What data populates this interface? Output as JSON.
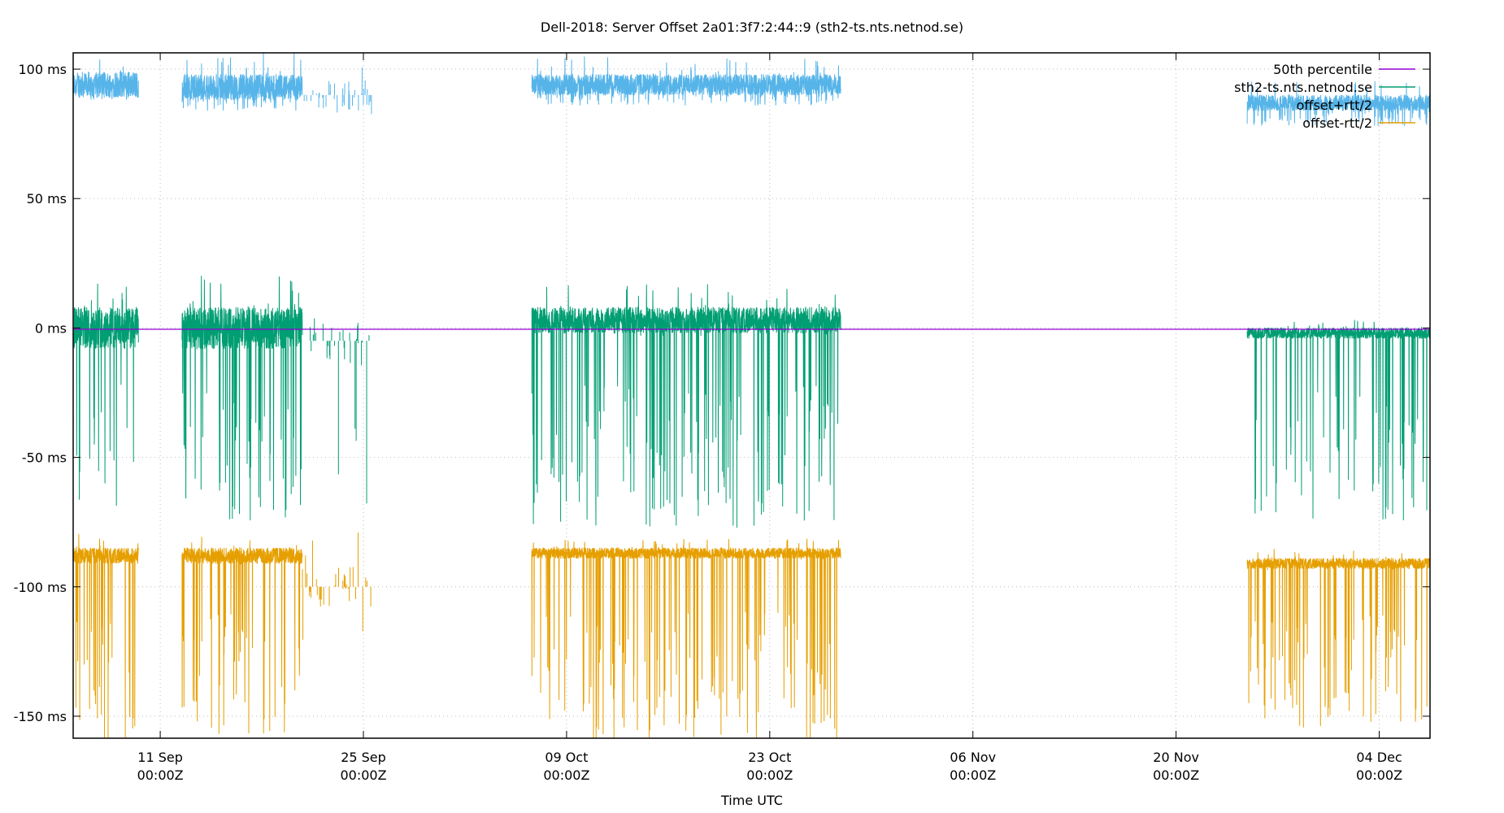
{
  "chart_data": {
    "type": "line",
    "title": "Dell-2018: Server Offset 2a01:3f7:2:44::9 (sth2-ts.nts.netnod.se)",
    "xlabel": "Time UTC",
    "ylabel": "",
    "x_unit": "days since 05 Sep 00:00Z",
    "xlim": [
      0,
      93.5
    ],
    "ylim": [
      -158.5,
      106.3
    ],
    "grid": true,
    "legend_position": "top-right",
    "yticks": [
      {
        "value": 100,
        "label": "100 ms"
      },
      {
        "value": 50,
        "label": "50 ms"
      },
      {
        "value": 0,
        "label": "0 ms"
      },
      {
        "value": -50,
        "label": "-50 ms"
      },
      {
        "value": -100,
        "label": "-100 ms"
      },
      {
        "value": -150,
        "label": "-150 ms"
      }
    ],
    "xticks": [
      {
        "value": 6,
        "label": "11 Sep",
        "sub": "00:00Z"
      },
      {
        "value": 20,
        "label": "25 Sep",
        "sub": "00:00Z"
      },
      {
        "value": 34,
        "label": "09 Oct",
        "sub": "00:00Z"
      },
      {
        "value": 48,
        "label": "23 Oct",
        "sub": "00:00Z"
      },
      {
        "value": 62,
        "label": "06 Nov",
        "sub": "00:00Z"
      },
      {
        "value": 76,
        "label": "20 Nov",
        "sub": "00:00Z"
      },
      {
        "value": 90,
        "label": "04 Dec",
        "sub": "00:00Z"
      }
    ],
    "series": [
      {
        "name": "50th percentile",
        "color": "#9400d3",
        "kind": "constant",
        "value": -0.5
      },
      {
        "name": "sth2-ts.nts.netnod.se",
        "color": "#009e73",
        "segments": [
          {
            "start": 0,
            "end": 4.5,
            "level": 0,
            "noise": 8,
            "dip": -70,
            "density": 1
          },
          {
            "start": 7.5,
            "end": 15.8,
            "level": 0,
            "noise": 8,
            "dip": -75,
            "density": 1
          },
          {
            "start": 15.8,
            "end": 20.6,
            "level": -5,
            "noise": 10,
            "dip": -80,
            "density": 0.08
          },
          {
            "start": 31.6,
            "end": 52.9,
            "level": 3,
            "noise": 5,
            "dip": -78,
            "density": 1
          },
          {
            "start": 80.9,
            "end": 93.5,
            "level": -2,
            "noise": 2,
            "dip": -75,
            "density": 1
          }
        ]
      },
      {
        "name": "offset+rtt/2",
        "color": "#56b4e9",
        "segments": [
          {
            "start": 0,
            "end": 4.5,
            "level": 94,
            "noise": 5,
            "dip": 88,
            "density": 1
          },
          {
            "start": 7.5,
            "end": 15.8,
            "level": 93,
            "noise": 5,
            "dip": 84,
            "density": 1
          },
          {
            "start": 15.8,
            "end": 20.6,
            "level": 90,
            "noise": 6,
            "dip": 82,
            "density": 0.08
          },
          {
            "start": 31.6,
            "end": 52.9,
            "level": 94,
            "noise": 4,
            "dip": 86,
            "density": 1
          },
          {
            "start": 80.9,
            "end": 93.5,
            "level": 87,
            "noise": 3,
            "dip": 78,
            "density": 1
          }
        ]
      },
      {
        "name": "offset-rtt/2",
        "color": "#e69f00",
        "segments": [
          {
            "start": 0,
            "end": 4.5,
            "level": -88,
            "noise": 3,
            "dip": -160,
            "density": 1
          },
          {
            "start": 7.5,
            "end": 15.8,
            "level": -88,
            "noise": 3,
            "dip": -160,
            "density": 1
          },
          {
            "start": 15.8,
            "end": 20.6,
            "level": -100,
            "noise": 8,
            "dip": -155,
            "density": 0.08
          },
          {
            "start": 31.6,
            "end": 52.9,
            "level": -87,
            "noise": 2,
            "dip": -160,
            "density": 1
          },
          {
            "start": 80.9,
            "end": 93.5,
            "level": -91,
            "noise": 2,
            "dip": -155,
            "density": 1
          }
        ]
      }
    ],
    "legend": [
      "50th percentile",
      "sth2-ts.nts.netnod.se",
      "offset+rtt/2",
      "offset-rtt/2"
    ]
  }
}
